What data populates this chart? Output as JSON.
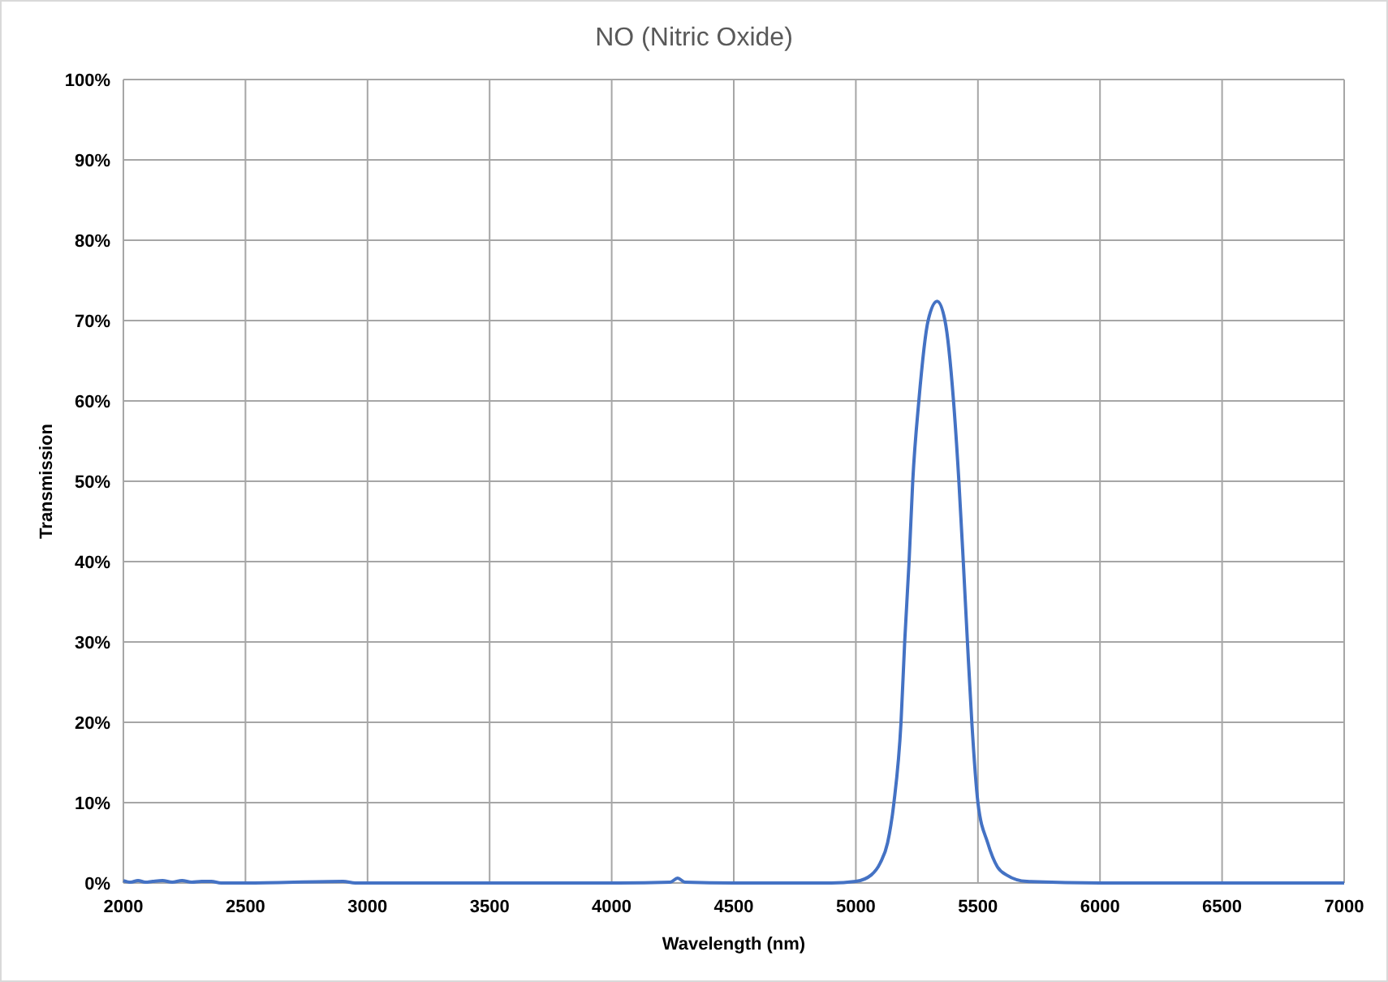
{
  "chart_data": {
    "type": "line",
    "title": "NO (Nitric Oxide)",
    "xlabel": "Wavelength (nm)",
    "ylabel": "Transmission",
    "grid": true,
    "marker": "none",
    "line_style": "solid",
    "xlim": [
      2000,
      7000
    ],
    "xticks": [
      2000,
      2500,
      3000,
      3500,
      4000,
      4500,
      5000,
      5500,
      6000,
      6500,
      7000
    ],
    "ylim": [
      0,
      100
    ],
    "yticks": [
      {
        "value": 0,
        "label": "0%"
      },
      {
        "value": 10,
        "label": "10%"
      },
      {
        "value": 20,
        "label": "20%"
      },
      {
        "value": 30,
        "label": "30%"
      },
      {
        "value": 40,
        "label": "40%"
      },
      {
        "value": 50,
        "label": "50%"
      },
      {
        "value": 60,
        "label": "60%"
      },
      {
        "value": 70,
        "label": "70%"
      },
      {
        "value": 80,
        "label": "80%"
      },
      {
        "value": 90,
        "label": "90%"
      },
      {
        "value": 100,
        "label": "100%"
      }
    ],
    "series": [
      {
        "color": "#4472c4",
        "x": [
          2000,
          2030,
          2060,
          2090,
          2120,
          2160,
          2200,
          2240,
          2280,
          2320,
          2360,
          2400,
          2500,
          2900,
          2950,
          3500,
          4000,
          4240,
          4270,
          4300,
          4500,
          4900,
          5000,
          5063,
          5100,
          5130,
          5156,
          5185,
          5200,
          5218,
          5233,
          5258,
          5296,
          5333,
          5365,
          5400,
          5422,
          5440,
          5457,
          5475,
          5500,
          5540,
          5580,
          5617,
          5700,
          6000,
          6500,
          7000
        ],
        "values": [
          0.3,
          0.1,
          0.3,
          0.1,
          0.2,
          0.3,
          0.1,
          0.3,
          0.1,
          0.2,
          0.2,
          0,
          0,
          0.2,
          0,
          0,
          0,
          0.1,
          0.6,
          0.1,
          0,
          0,
          0.2,
          1,
          2.5,
          5,
          10,
          20,
          30,
          40,
          50,
          60,
          70,
          72.4,
          70,
          60,
          50,
          40,
          30,
          20,
          10,
          5,
          2,
          1,
          0.2,
          0,
          0,
          0
        ]
      }
    ]
  }
}
